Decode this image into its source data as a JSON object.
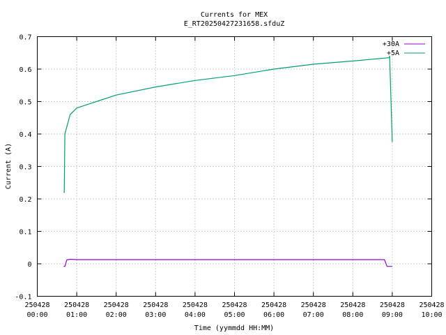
{
  "chart_data": {
    "type": "line",
    "title": "Currents for MEX",
    "subtitle": "E_RT20250427231658.sfduZ",
    "xlabel": "Time (yymmdd HH:MM)",
    "ylabel": "Current (A)",
    "xlim": [
      "250428 00:00",
      "250428 10:00"
    ],
    "ylim": [
      -0.1,
      0.7
    ],
    "x_ticks": [
      {
        "date": "250428",
        "time": "00:00"
      },
      {
        "date": "250428",
        "time": "01:00"
      },
      {
        "date": "250428",
        "time": "02:00"
      },
      {
        "date": "250428",
        "time": "03:00"
      },
      {
        "date": "250428",
        "time": "04:00"
      },
      {
        "date": "250428",
        "time": "05:00"
      },
      {
        "date": "250428",
        "time": "06:00"
      },
      {
        "date": "250428",
        "time": "07:00"
      },
      {
        "date": "250428",
        "time": "08:00"
      },
      {
        "date": "250428",
        "time": "09:00"
      },
      {
        "date": "250428",
        "time": "10:00"
      }
    ],
    "y_ticks": [
      "-0.1",
      "0",
      "0.1",
      "0.2",
      "0.3",
      "0.4",
      "0.5",
      "0.6",
      "0.7"
    ],
    "grid": true,
    "legend_position": "top-right",
    "series": [
      {
        "name": "+30A",
        "color": "#9400d3",
        "x": [
          "00:40",
          "00:42",
          "00:45",
          "00:50",
          "01:00",
          "02:00",
          "03:00",
          "04:00",
          "05:00",
          "06:00",
          "07:00",
          "08:00",
          "08:48",
          "08:52",
          "09:00"
        ],
        "y": [
          -0.008,
          -0.008,
          0.012,
          0.014,
          0.013,
          0.013,
          0.013,
          0.013,
          0.013,
          0.013,
          0.013,
          0.013,
          0.013,
          -0.008,
          -0.008
        ]
      },
      {
        "name": "+5A",
        "color": "#009e73",
        "x": [
          "00:40",
          "00:41",
          "00:42",
          "00:50",
          "01:00",
          "01:30",
          "02:00",
          "03:00",
          "04:00",
          "05:00",
          "06:00",
          "07:00",
          "08:00",
          "08:55",
          "08:56",
          "09:00"
        ],
        "y": [
          0.22,
          0.22,
          0.4,
          0.46,
          0.48,
          0.5,
          0.52,
          0.545,
          0.565,
          0.58,
          0.6,
          0.615,
          0.625,
          0.635,
          0.64,
          0.375
        ]
      }
    ]
  }
}
